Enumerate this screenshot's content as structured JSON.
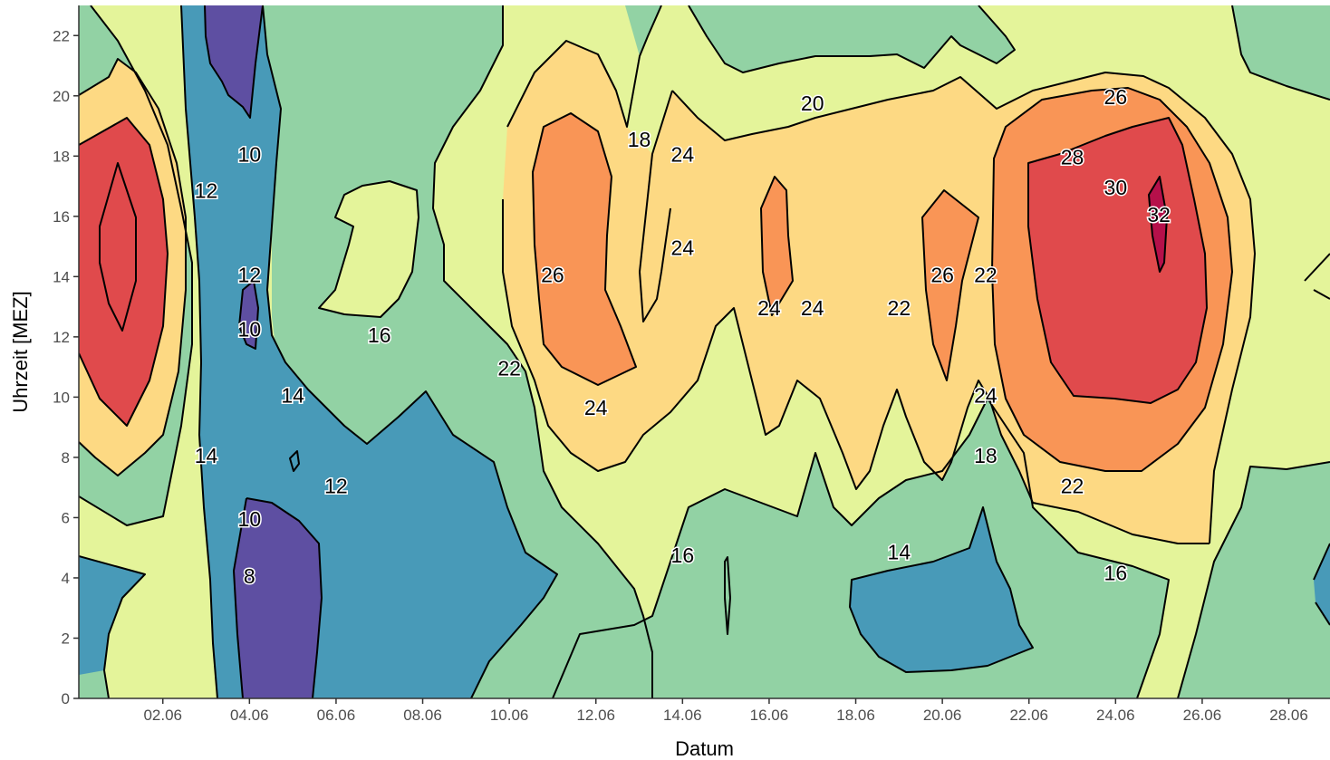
{
  "chart_data": {
    "type": "contour",
    "xlabel": "Datum",
    "ylabel": "Uhrzeit [MEZ]",
    "x_range_days": [
      0,
      29
    ],
    "ylim": [
      0,
      23
    ],
    "x_ticks": [
      {
        "label": "02.06"
      },
      {
        "label": "04.06"
      },
      {
        "label": "06.06"
      },
      {
        "label": "08.06"
      },
      {
        "label": "10.06"
      },
      {
        "label": "12.06"
      },
      {
        "label": "14.06"
      },
      {
        "label": "16.06"
      },
      {
        "label": "18.06"
      },
      {
        "label": "20.06"
      },
      {
        "label": "22.06"
      },
      {
        "label": "24.06"
      },
      {
        "label": "26.06"
      },
      {
        "label": "28.06"
      }
    ],
    "y_ticks": [
      "0",
      "2",
      "4",
      "6",
      "8",
      "10",
      "12",
      "14",
      "16",
      "18",
      "20",
      "22"
    ],
    "palette": "Spectral",
    "levels": [
      {
        "min": 6,
        "max": 10,
        "color": "#5e4fa2"
      },
      {
        "min": 10,
        "max": 14,
        "color": "#489ab8"
      },
      {
        "min": 14,
        "max": 18,
        "color": "#92d2a4"
      },
      {
        "min": 18,
        "max": 22,
        "color": "#e4f49a"
      },
      {
        "min": 22,
        "max": 26,
        "color": "#fdd983"
      },
      {
        "min": 26,
        "max": 28,
        "color": "#f99556"
      },
      {
        "min": 28,
        "max": 32,
        "color": "#e04a4c"
      },
      {
        "min": 32,
        "max": 34,
        "color": "#b5104a"
      }
    ],
    "contour_labels": [
      {
        "text": "10",
        "x_date": "04.06",
        "hour": 18
      },
      {
        "text": "12",
        "x_date": "03.06",
        "hour": 16.8
      },
      {
        "text": "12",
        "x_date": "04.06",
        "hour": 14
      },
      {
        "text": "10",
        "x_date": "04.06",
        "hour": 12.2
      },
      {
        "text": "14",
        "x_date": "05.06",
        "hour": 10
      },
      {
        "text": "14",
        "x_date": "03.06",
        "hour": 8
      },
      {
        "text": "12",
        "x_date": "06.06",
        "hour": 7
      },
      {
        "text": "10",
        "x_date": "04.06",
        "hour": 5.9
      },
      {
        "text": "8",
        "x_date": "04.06",
        "hour": 4
      },
      {
        "text": "16",
        "x_date": "07.06",
        "hour": 12
      },
      {
        "text": "18",
        "x_date": "13.06",
        "hour": 18.5
      },
      {
        "text": "24",
        "x_date": "14.06",
        "hour": 18
      },
      {
        "text": "24",
        "x_date": "14.06",
        "hour": 14.9
      },
      {
        "text": "26",
        "x_date": "11.06",
        "hour": 14
      },
      {
        "text": "22",
        "x_date": "10.06",
        "hour": 10.9
      },
      {
        "text": "24",
        "x_date": "12.06",
        "hour": 9.6
      },
      {
        "text": "20",
        "x_date": "17.06",
        "hour": 19.7
      },
      {
        "text": "24",
        "x_date": "16.06",
        "hour": 12.9
      },
      {
        "text": "24",
        "x_date": "17.06",
        "hour": 12.9
      },
      {
        "text": "22",
        "x_date": "19.06",
        "hour": 12.9
      },
      {
        "text": "26",
        "x_date": "20.06",
        "hour": 14
      },
      {
        "text": "22",
        "x_date": "21.06",
        "hour": 14
      },
      {
        "text": "24",
        "x_date": "21.06",
        "hour": 10
      },
      {
        "text": "18",
        "x_date": "21.06",
        "hour": 8
      },
      {
        "text": "22",
        "x_date": "23.06",
        "hour": 7
      },
      {
        "text": "14",
        "x_date": "19.06",
        "hour": 4.8
      },
      {
        "text": "16",
        "x_date": "14.06",
        "hour": 4.7
      },
      {
        "text": "16",
        "x_date": "24.06",
        "hour": 4.1
      },
      {
        "text": "26",
        "x_date": "24.06",
        "hour": 19.9
      },
      {
        "text": "28",
        "x_date": "23.06",
        "hour": 17.9
      },
      {
        "text": "30",
        "x_date": "24.06",
        "hour": 16.9
      },
      {
        "text": "32",
        "x_date": "25.06",
        "hour": 16
      }
    ]
  }
}
